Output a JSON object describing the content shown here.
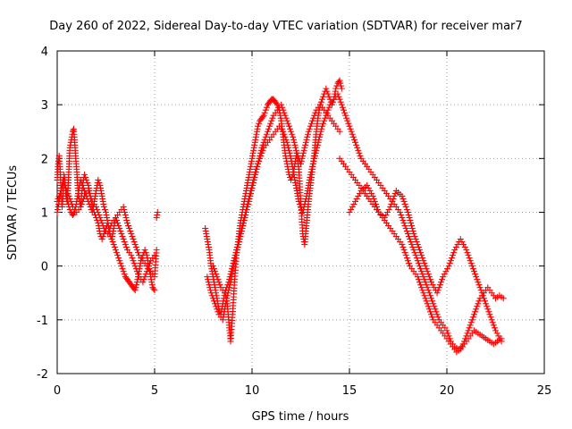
{
  "chart_data": {
    "type": "scatter",
    "title": "Day 260 of 2022, Sidereal Day-to-day VTEC variation (SDTVAR) for receiver mar7",
    "xlabel": "GPS time / hours",
    "ylabel": "SDTVAR / TECUs",
    "xlim": [
      0,
      25
    ],
    "ylim": [
      -2,
      4
    ],
    "xticks": [
      "0",
      "5",
      "10",
      "15",
      "20",
      "25"
    ],
    "yticks": [
      "-2",
      "-1",
      "0",
      "1",
      "2",
      "3",
      "4"
    ],
    "grid": true,
    "marker": "+",
    "color": "#ff0000",
    "series": [
      {
        "name": "SDTVAR",
        "x": [
          0.0,
          0.05,
          0.1,
          0.15,
          0.2,
          0.25,
          0.3,
          0.35,
          0.4,
          0.45,
          0.5,
          0.55,
          0.6,
          0.65,
          0.7,
          0.75,
          0.8,
          0.85,
          0.9,
          0.95,
          1.0,
          1.05,
          1.1,
          1.15,
          1.2,
          1.25,
          1.3,
          1.35,
          1.4,
          1.5,
          1.6,
          1.7,
          1.8,
          1.9,
          2.0,
          2.1,
          2.2,
          2.3,
          2.4,
          2.5,
          2.6,
          2.7,
          2.8,
          2.9,
          3.0,
          3.1,
          3.2,
          3.3,
          3.4,
          3.5,
          3.6,
          3.7,
          3.8,
          3.9,
          4.0,
          4.1,
          4.2,
          4.3,
          4.4,
          4.5,
          4.6,
          4.7,
          4.8,
          4.9,
          5.0,
          5.1,
          5.15,
          0.0,
          0.1,
          0.2,
          0.3,
          0.4,
          0.5,
          0.6,
          0.7,
          0.8,
          0.9,
          1.0,
          1.1,
          1.2,
          1.3,
          1.4,
          1.5,
          1.6,
          1.7,
          1.8,
          1.9,
          2.0,
          2.1,
          2.2,
          2.3,
          2.4,
          2.5,
          2.6,
          2.7,
          2.8,
          2.9,
          3.0,
          3.2,
          3.4,
          3.6,
          3.8,
          4.0,
          4.2,
          4.4,
          4.6,
          4.8,
          5.0,
          5.1,
          0.0,
          0.2,
          0.4,
          0.6,
          0.8,
          1.0,
          1.2,
          1.4,
          1.6,
          1.8,
          2.0,
          2.2,
          2.4,
          2.6,
          2.8,
          3.0,
          3.2,
          3.4,
          3.6,
          3.8,
          4.0,
          4.2,
          4.4,
          4.6,
          4.8,
          5.0,
          7.6,
          7.7,
          7.8,
          7.9,
          8.0,
          8.1,
          8.2,
          8.3,
          8.4,
          8.5,
          8.6,
          8.7,
          8.8,
          8.9,
          9.0,
          9.1,
          9.2,
          9.3,
          9.4,
          9.5,
          9.6,
          9.7,
          9.8,
          9.9,
          10.0,
          10.1,
          10.2,
          10.3,
          10.4,
          10.5,
          10.6,
          10.7,
          10.8,
          10.9,
          11.0,
          11.1,
          11.2,
          11.3,
          11.4,
          11.5,
          11.6,
          11.7,
          11.8,
          11.9,
          12.0,
          12.1,
          12.2,
          12.3,
          12.4,
          12.5,
          12.6,
          12.7,
          12.8,
          12.9,
          13.0,
          13.1,
          13.2,
          13.3,
          13.4,
          13.5,
          13.6,
          13.7,
          13.8,
          13.9,
          14.0,
          14.1,
          14.2,
          14.3,
          14.4,
          14.5,
          14.6,
          7.7,
          7.9,
          8.1,
          8.3,
          8.5,
          8.7,
          8.9,
          9.1,
          9.3,
          9.5,
          9.7,
          9.9,
          10.1,
          10.3,
          10.5,
          10.7,
          10.9,
          11.1,
          11.3,
          11.5,
          11.7,
          11.9,
          12.1,
          12.3,
          12.5,
          12.7,
          12.9,
          13.1,
          13.3,
          13.5,
          13.7,
          13.9,
          14.1,
          14.3,
          14.5,
          8.0,
          8.2,
          8.4,
          8.6,
          8.8,
          9.0,
          9.2,
          9.4,
          9.6,
          9.8,
          10.0,
          10.2,
          10.4,
          10.6,
          10.8,
          11.0,
          11.2,
          11.4,
          11.6,
          11.8,
          12.0,
          12.2,
          12.4,
          12.6,
          12.8,
          13.0,
          13.2,
          13.4,
          13.6,
          13.8,
          14.0,
          14.2,
          14.4,
          14.6,
          14.8,
          15.0,
          15.2,
          15.4,
          15.6,
          15.8,
          16.0,
          16.2,
          16.4,
          16.6,
          16.8,
          17.0,
          17.2,
          17.4,
          17.6,
          17.8,
          18.0,
          18.2,
          18.4,
          18.6,
          18.8,
          19.0,
          19.2,
          19.4,
          19.6,
          19.8,
          20.0,
          20.2,
          20.4,
          20.6,
          20.8,
          21.0,
          21.2,
          21.4,
          21.6,
          21.8,
          22.0,
          22.2,
          22.4,
          22.6,
          22.8,
          14.5,
          14.7,
          14.9,
          15.1,
          15.3,
          15.5,
          15.7,
          15.9,
          16.1,
          16.3,
          16.5,
          16.7,
          16.9,
          17.1,
          17.3,
          17.5,
          17.7,
          17.9,
          18.1,
          18.3,
          18.5,
          18.7,
          18.9,
          19.1,
          19.3,
          19.5,
          19.7,
          19.9,
          20.1,
          20.3,
          20.5,
          20.7,
          20.9,
          21.1,
          21.3,
          21.5,
          21.7,
          21.9,
          22.1,
          22.3,
          22.5,
          22.7,
          22.9,
          15.0,
          15.3,
          15.6,
          15.9,
          16.2,
          16.5,
          16.8,
          17.1,
          17.4,
          17.7,
          18.0,
          18.3,
          18.6,
          18.9,
          19.2,
          19.5,
          19.8,
          20.1,
          20.4,
          20.7,
          21.0,
          21.3,
          21.6,
          21.9,
          22.2,
          22.5,
          22.8
        ],
        "y": [
          1.6,
          1.9,
          2.05,
          1.8,
          1.4,
          1.1,
          1.3,
          1.7,
          1.6,
          1.3,
          1.2,
          1.4,
          1.8,
          2.2,
          2.3,
          2.4,
          2.5,
          2.55,
          2.3,
          2.0,
          1.8,
          1.5,
          1.3,
          1.2,
          1.1,
          1.3,
          1.5,
          1.6,
          1.7,
          1.6,
          1.5,
          1.3,
          1.1,
          1.0,
          0.9,
          0.8,
          0.6,
          0.5,
          0.6,
          0.7,
          0.8,
          0.6,
          0.5,
          0.4,
          0.3,
          0.2,
          0.1,
          0.0,
          -0.1,
          -0.2,
          -0.25,
          -0.3,
          -0.35,
          -0.4,
          -0.45,
          -0.3,
          -0.1,
          0.1,
          0.2,
          0.3,
          0.2,
          0.0,
          -0.2,
          -0.4,
          -0.45,
          0.9,
          1.0,
          1.0,
          1.2,
          1.4,
          1.6,
          1.5,
          1.3,
          1.1,
          1.0,
          0.95,
          1.0,
          1.2,
          1.4,
          1.6,
          1.5,
          1.4,
          1.3,
          1.2,
          1.1,
          1.0,
          1.2,
          1.4,
          1.6,
          1.5,
          1.3,
          1.1,
          1.0,
          0.8,
          0.6,
          0.5,
          0.7,
          0.9,
          1.0,
          1.1,
          0.8,
          0.6,
          0.4,
          0.2,
          0.1,
          0.0,
          -0.1,
          -0.2,
          0.3,
          1.2,
          1.4,
          1.5,
          1.3,
          1.1,
          1.0,
          1.1,
          1.3,
          1.4,
          1.2,
          1.1,
          0.9,
          0.7,
          0.6,
          0.8,
          0.9,
          0.7,
          0.5,
          0.3,
          0.2,
          0.0,
          -0.2,
          -0.3,
          -0.1,
          0.1,
          0.2,
          0.7,
          0.5,
          0.3,
          0.0,
          -0.2,
          -0.4,
          -0.6,
          -0.8,
          -0.9,
          -0.7,
          -0.5,
          -0.6,
          -1.0,
          -1.4,
          -0.9,
          -0.3,
          0.2,
          0.5,
          0.8,
          1.0,
          1.2,
          1.4,
          1.6,
          1.8,
          2.0,
          2.2,
          2.4,
          2.6,
          2.7,
          2.75,
          2.8,
          2.9,
          3.0,
          3.05,
          3.1,
          3.1,
          3.05,
          3.0,
          2.9,
          2.7,
          2.4,
          2.1,
          1.9,
          1.7,
          1.6,
          1.7,
          1.9,
          2.1,
          1.8,
          1.2,
          0.6,
          0.4,
          0.8,
          1.2,
          1.5,
          1.8,
          2.1,
          2.5,
          2.8,
          3.0,
          3.1,
          3.2,
          3.3,
          3.2,
          3.1,
          3.0,
          3.1,
          3.3,
          3.4,
          3.45,
          3.3,
          -0.2,
          -0.5,
          -0.7,
          -0.9,
          -1.0,
          -0.6,
          -0.3,
          0.1,
          0.4,
          0.7,
          1.0,
          1.3,
          1.6,
          1.9,
          2.2,
          2.4,
          2.6,
          2.8,
          2.9,
          3.0,
          2.8,
          2.6,
          2.4,
          2.1,
          1.9,
          2.2,
          2.5,
          2.7,
          2.9,
          3.0,
          2.9,
          2.8,
          2.7,
          2.6,
          2.5,
          0.0,
          -0.2,
          -0.4,
          -0.5,
          -0.3,
          0.0,
          0.3,
          0.6,
          0.9,
          1.2,
          1.5,
          1.8,
          2.0,
          2.2,
          2.3,
          2.4,
          2.5,
          2.6,
          2.5,
          2.3,
          2.0,
          1.6,
          1.2,
          1.0,
          1.3,
          1.7,
          2.0,
          2.3,
          2.6,
          2.8,
          3.0,
          3.1,
          3.2,
          3.0,
          2.8,
          2.6,
          2.4,
          2.2,
          2.0,
          1.9,
          1.8,
          1.7,
          1.6,
          1.5,
          1.4,
          1.3,
          1.2,
          1.1,
          1.0,
          0.8,
          0.6,
          0.4,
          0.2,
          0.0,
          -0.2,
          -0.4,
          -0.6,
          -0.8,
          -1.0,
          -1.1,
          -1.2,
          -1.4,
          -1.5,
          -1.55,
          -1.5,
          -1.4,
          -1.3,
          -1.2,
          -1.25,
          -1.3,
          -1.35,
          -1.4,
          -1.45,
          -1.4,
          -1.35,
          2.0,
          1.9,
          1.8,
          1.7,
          1.6,
          1.5,
          1.4,
          1.3,
          1.2,
          1.1,
          1.0,
          0.9,
          0.8,
          0.7,
          0.6,
          0.5,
          0.4,
          0.2,
          0.0,
          -0.1,
          -0.2,
          -0.4,
          -0.6,
          -0.8,
          -1.0,
          -1.1,
          -1.2,
          -1.3,
          -1.4,
          -1.5,
          -1.6,
          -1.55,
          -1.4,
          -1.2,
          -1.0,
          -0.8,
          -0.6,
          -0.5,
          -0.4,
          -0.5,
          -0.6,
          -0.55,
          -0.6,
          1.0,
          1.2,
          1.4,
          1.5,
          1.3,
          1.0,
          0.9,
          1.1,
          1.4,
          1.3,
          1.0,
          0.6,
          0.3,
          0.0,
          -0.3,
          -0.5,
          -0.2,
          0.0,
          0.3,
          0.5,
          0.3,
          0.0,
          -0.3,
          -0.6,
          -0.9,
          -1.2,
          -1.4
        ]
      }
    ]
  }
}
